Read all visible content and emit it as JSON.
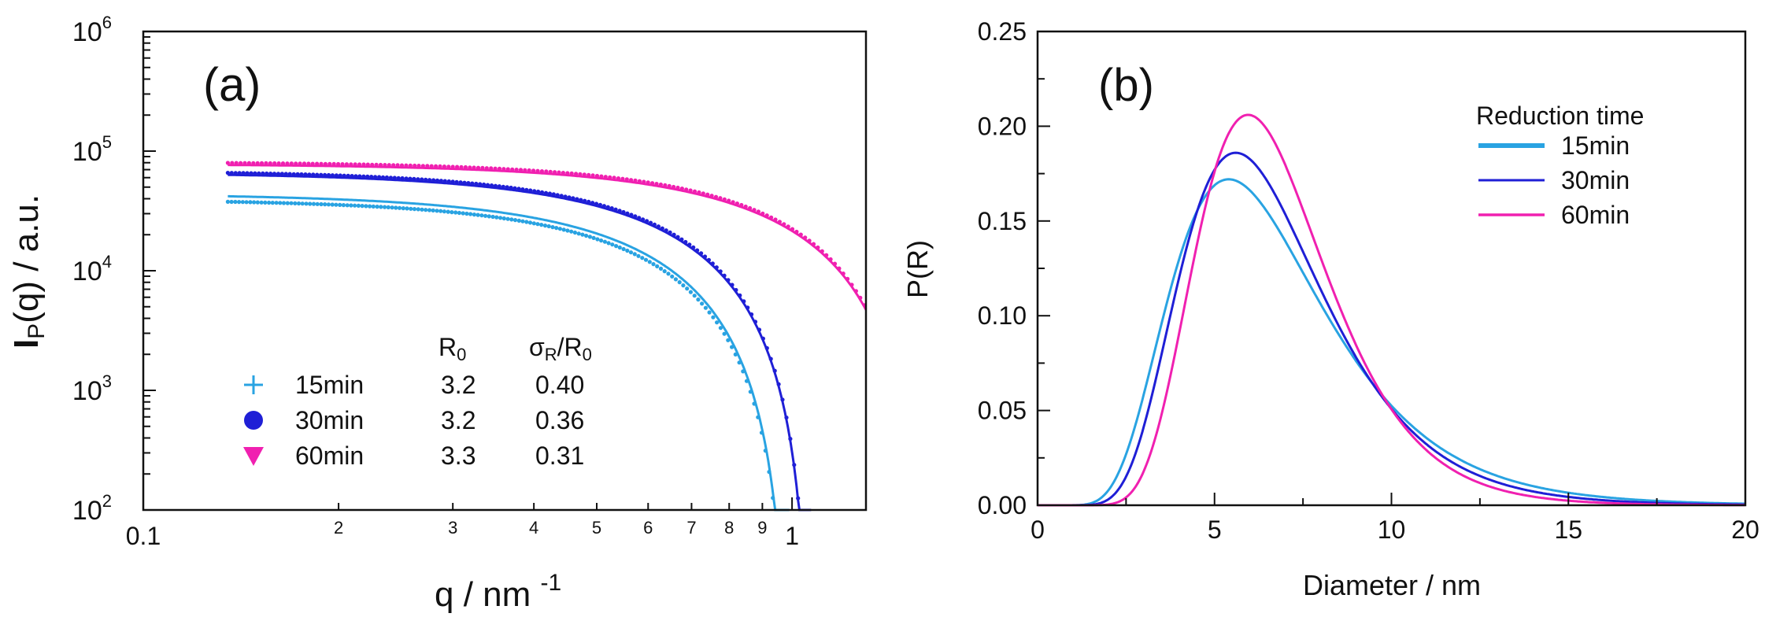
{
  "chart_data": [
    {
      "type": "line",
      "panel_label": "(a)",
      "xscale": "log",
      "yscale": "log",
      "xlim": [
        0.1,
        1.3
      ],
      "ylim": [
        100,
        1000000
      ],
      "xlabel": "q / nm",
      "xlabel_sup": "-1",
      "ylabel_main": "I",
      "ylabel_sub": "P",
      "ylabel_rest": "(q) / a.u.",
      "x_tick_labels": [
        {
          "value": 0.1,
          "label": "0.1"
        },
        {
          "value": 0.2,
          "label": "2"
        },
        {
          "value": 0.3,
          "label": "3"
        },
        {
          "value": 0.4,
          "label": "4"
        },
        {
          "value": 0.5,
          "label": "5"
        },
        {
          "value": 0.6,
          "label": "6"
        },
        {
          "value": 0.7,
          "label": "7"
        },
        {
          "value": 0.8,
          "label": "8"
        },
        {
          "value": 0.9,
          "label": "9"
        },
        {
          "value": 1,
          "label": "1"
        }
      ],
      "y_ticks": [
        {
          "value": 100,
          "base": "10",
          "exp": "2"
        },
        {
          "value": 1000,
          "base": "10",
          "exp": "3"
        },
        {
          "value": 10000,
          "base": "10",
          "exp": "4"
        },
        {
          "value": 100000,
          "base": "10",
          "exp": "5"
        },
        {
          "value": 1000000,
          "base": "10",
          "exp": "6"
        }
      ],
      "legend_headers": {
        "r0": "R",
        "r0_sub": "0",
        "sigma": "σ",
        "sigma_sub": "R",
        "sigma_rest": "/R",
        "sigma_rest_sub": "0"
      },
      "series": [
        {
          "name": "15min",
          "marker": "+",
          "color": "#29a3e2",
          "r0": "3.2",
          "sigma_ratio": "0.40",
          "I0": 44000,
          "qzero": 0.99,
          "fit_start": 0.135,
          "data_start": 0.135
        },
        {
          "name": "30min",
          "marker": "●",
          "color": "#1f1fd6",
          "r0": "3.2",
          "sigma_ratio": "0.36",
          "I0": 66000,
          "qzero": 1.07,
          "fit_start": 0.135,
          "data_start": 0.135
        },
        {
          "name": "60min",
          "marker": "▼",
          "color": "#f020b0",
          "r0": "3.3",
          "sigma_ratio": "0.31",
          "I0": 78000,
          "qzero": 1.6,
          "fit_start": 0.135,
          "data_start": 0.135
        }
      ]
    },
    {
      "type": "line",
      "panel_label": "(b)",
      "xlim": [
        0,
        20
      ],
      "ylim": [
        0,
        0.25
      ],
      "xlabel": "Diameter / nm",
      "ylabel": "P(R)",
      "x_ticks": [
        0,
        5,
        10,
        15,
        20
      ],
      "y_ticks": [
        "0.00",
        "0.05",
        "0.10",
        "0.15",
        "0.20",
        "0.25"
      ],
      "legend_title": "Reduction time",
      "series": [
        {
          "name": "15min",
          "color": "#29a3e2",
          "mode": 5.4,
          "peak": 0.172,
          "sigma": 0.4
        },
        {
          "name": "30min",
          "color": "#1f1fd6",
          "mode": 5.6,
          "peak": 0.186,
          "sigma": 0.36
        },
        {
          "name": "60min",
          "color": "#f020b0",
          "mode": 5.95,
          "peak": 0.206,
          "sigma": 0.31
        }
      ]
    }
  ]
}
